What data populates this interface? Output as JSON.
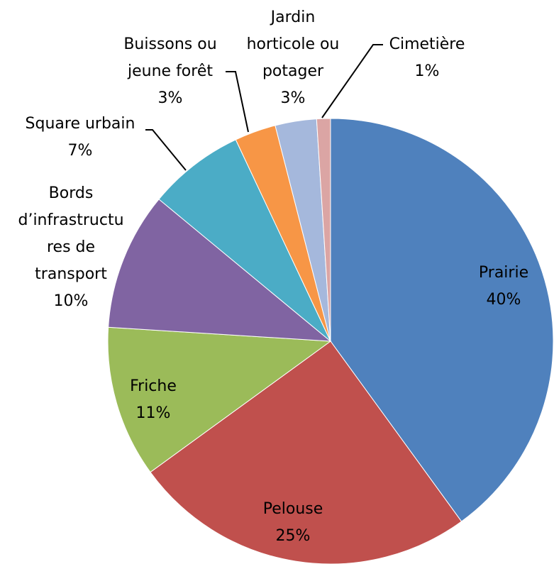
{
  "chart_data": {
    "type": "pie",
    "categories": [
      [
        "Prairie"
      ],
      [
        "Pelouse"
      ],
      [
        "Friche"
      ],
      [
        "Bords",
        "d’infrastructu",
        "res de",
        "transport"
      ],
      [
        "Square urbain"
      ],
      [
        "Buissons ou",
        "jeune forêt"
      ],
      [
        "Jardin",
        "horticole ou",
        "potager"
      ],
      [
        "Cimetière"
      ]
    ],
    "values": [
      40,
      25,
      11,
      10,
      7,
      3,
      3,
      1
    ],
    "value_labels": [
      "40%",
      "25%",
      "11%",
      "10%",
      "7%",
      "3%",
      "3%",
      "1%"
    ],
    "colors": [
      "#4f81bd",
      "#c0504d",
      "#9bbb59",
      "#8064a2",
      "#4bacc6",
      "#f79646",
      "#a5b8dc",
      "#dba5a4"
    ]
  }
}
